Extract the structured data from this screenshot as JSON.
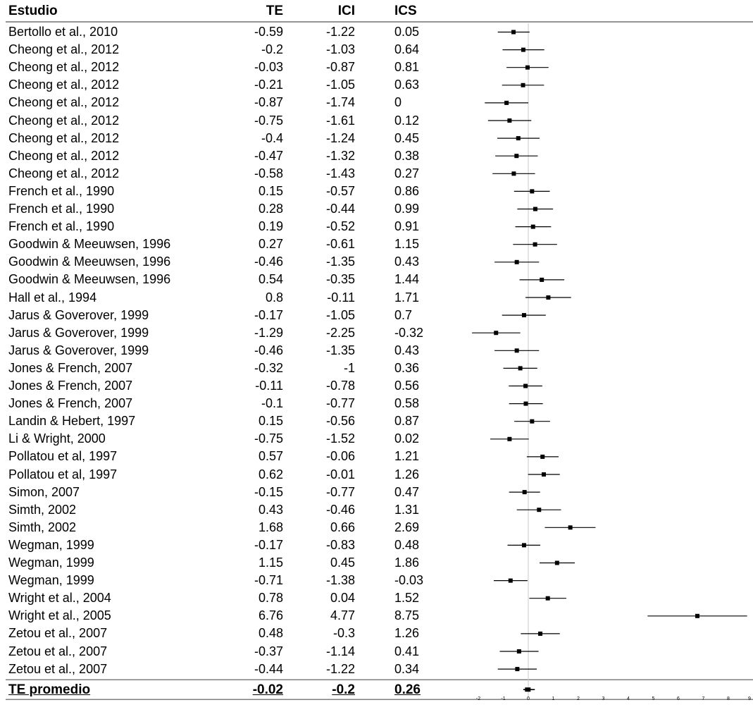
{
  "headers": {
    "study": "Estudio",
    "te": "TE",
    "ici": "ICI",
    "ics": "ICS"
  },
  "chart_data": {
    "type": "forest",
    "columns": [
      "Estudio",
      "TE",
      "ICI",
      "ICS"
    ],
    "rows": [
      {
        "study": "Bertollo et al., 2010",
        "te": "-0.59",
        "ici": "-1.22",
        "ics": "0.05"
      },
      {
        "study": "Cheong et al., 2012",
        "te": "-0.2",
        "ici": "-1.03",
        "ics": "0.64"
      },
      {
        "study": "Cheong et al., 2012",
        "te": "-0.03",
        "ici": "-0.87",
        "ics": "0.81"
      },
      {
        "study": "Cheong et al., 2012",
        "te": "-0.21",
        "ici": "-1.05",
        "ics": "0.63"
      },
      {
        "study": "Cheong et al., 2012",
        "te": "-0.87",
        "ici": "-1.74",
        "ics": "0"
      },
      {
        "study": "Cheong et al., 2012",
        "te": "-0.75",
        "ici": "-1.61",
        "ics": "0.12"
      },
      {
        "study": "Cheong et al., 2012",
        "te": "-0.4",
        "ici": "-1.24",
        "ics": "0.45"
      },
      {
        "study": "Cheong et al., 2012",
        "te": "-0.47",
        "ici": "-1.32",
        "ics": "0.38"
      },
      {
        "study": "Cheong et al., 2012",
        "te": "-0.58",
        "ici": "-1.43",
        "ics": "0.27"
      },
      {
        "study": "French et al., 1990",
        "te": "0.15",
        "ici": "-0.57",
        "ics": "0.86"
      },
      {
        "study": "French et al., 1990",
        "te": "0.28",
        "ici": "-0.44",
        "ics": "0.99"
      },
      {
        "study": "French et al., 1990",
        "te": "0.19",
        "ici": "-0.52",
        "ics": "0.91"
      },
      {
        "study": "Goodwin & Meeuwsen, 1996",
        "te": "0.27",
        "ici": "-0.61",
        "ics": "1.15"
      },
      {
        "study": "Goodwin & Meeuwsen, 1996",
        "te": "-0.46",
        "ici": "-1.35",
        "ics": "0.43"
      },
      {
        "study": "Goodwin & Meeuwsen, 1996",
        "te": "0.54",
        "ici": "-0.35",
        "ics": "1.44"
      },
      {
        "study": "Hall et al., 1994",
        "te": "0.8",
        "ici": "-0.11",
        "ics": "1.71"
      },
      {
        "study": "Jarus & Goverover, 1999",
        "te": "-0.17",
        "ici": "-1.05",
        "ics": "0.7"
      },
      {
        "study": "Jarus & Goverover, 1999",
        "te": "-1.29",
        "ici": "-2.25",
        "ics": "-0.32"
      },
      {
        "study": "Jarus & Goverover, 1999",
        "te": "-0.46",
        "ici": "-1.35",
        "ics": "0.43"
      },
      {
        "study": "Jones & French, 2007",
        "te": "-0.32",
        "ici": "-1",
        "ics": "0.36"
      },
      {
        "study": "Jones & French, 2007",
        "te": "-0.11",
        "ici": "-0.78",
        "ics": "0.56"
      },
      {
        "study": "Jones & French, 2007",
        "te": "-0.1",
        "ici": "-0.77",
        "ics": "0.58"
      },
      {
        "study": "Landin & Hebert, 1997",
        "te": "0.15",
        "ici": "-0.56",
        "ics": "0.87"
      },
      {
        "study": "Li & Wright, 2000",
        "te": "-0.75",
        "ici": "-1.52",
        "ics": "0.02"
      },
      {
        "study": "Pollatou et al, 1997",
        "te": "0.57",
        "ici": "-0.06",
        "ics": "1.21"
      },
      {
        "study": "Pollatou et al, 1997",
        "te": "0.62",
        "ici": "-0.01",
        "ics": "1.26"
      },
      {
        "study": "Simon, 2007",
        "te": "-0.15",
        "ici": "-0.77",
        "ics": "0.47"
      },
      {
        "study": "Simth, 2002",
        "te": "0.43",
        "ici": "-0.46",
        "ics": "1.31"
      },
      {
        "study": "Simth, 2002",
        "te": "1.68",
        "ici": "0.66",
        "ics": "2.69"
      },
      {
        "study": "Wegman, 1999",
        "te": "-0.17",
        "ici": "-0.83",
        "ics": "0.48"
      },
      {
        "study": "Wegman, 1999",
        "te": "1.15",
        "ici": "0.45",
        "ics": "1.86"
      },
      {
        "study": "Wegman, 1999",
        "te": "-0.71",
        "ici": "-1.38",
        "ics": "-0.03"
      },
      {
        "study": "Wright et al., 2004",
        "te": "0.78",
        "ici": "0.04",
        "ics": "1.52"
      },
      {
        "study": "Wright et al., 2005",
        "te": "6.76",
        "ici": "4.77",
        "ics": "8.75"
      },
      {
        "study": "Zetou et al., 2007",
        "te": "0.48",
        "ici": "-0.3",
        "ics": "1.26"
      },
      {
        "study": "Zetou et al., 2007",
        "te": "-0.37",
        "ici": "-1.14",
        "ics": "0.41"
      },
      {
        "study": "Zetou et al., 2007",
        "te": "-0.44",
        "ici": "-1.22",
        "ics": "0.34"
      }
    ],
    "summary": {
      "study": "TE promedio",
      "te": "-0.02",
      "ici": "-0.2",
      "ics": "0.26"
    },
    "x_ticks": [
      "-2",
      "-1",
      "0",
      "1",
      "2",
      "3",
      "4",
      "5",
      "6",
      "7",
      "8",
      "9"
    ],
    "xlim": [
      -2,
      9
    ],
    "reference_line": 0,
    "grid": false,
    "colors": {
      "marker": "#000000",
      "reference": "#c8c8c8"
    }
  }
}
